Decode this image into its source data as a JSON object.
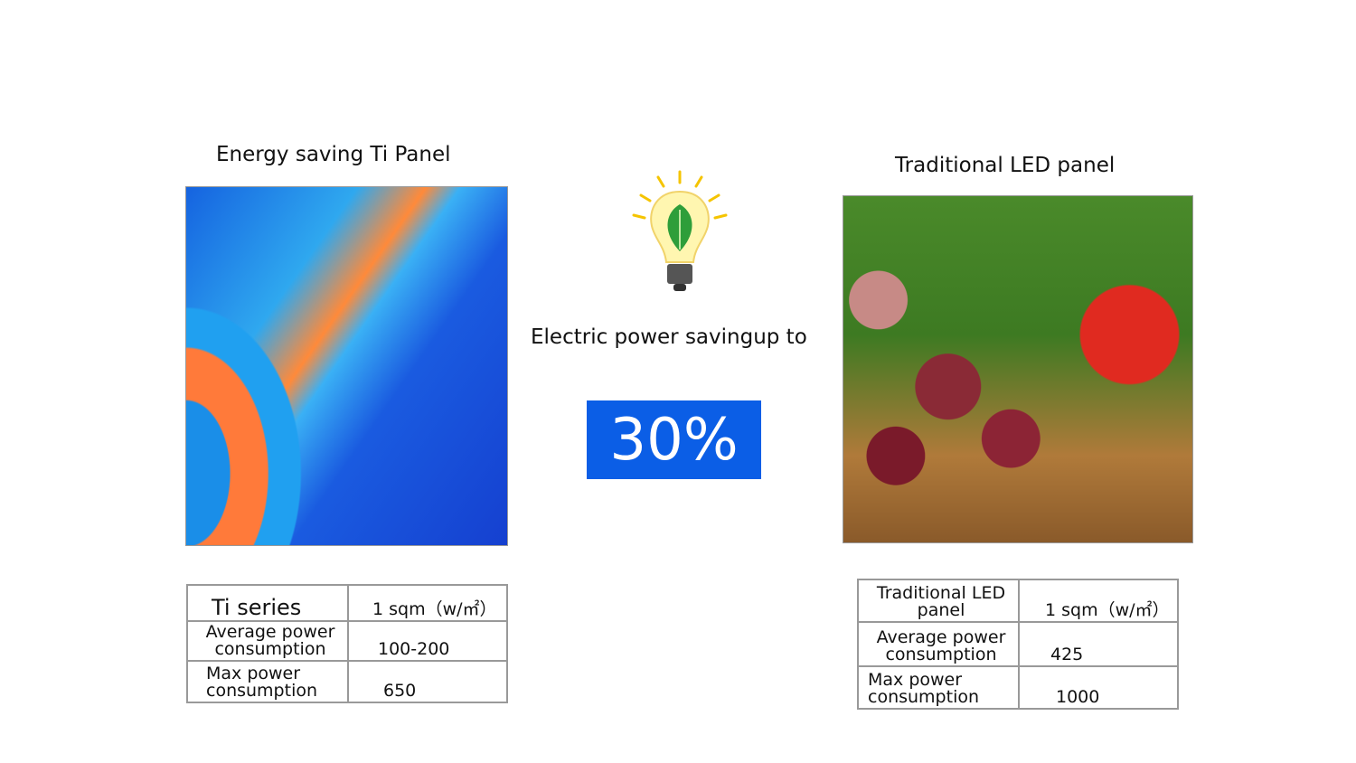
{
  "left": {
    "title": "Energy saving Ti Panel",
    "table": {
      "header": [
        "Ti series",
        "1 sqm（w/㎡）"
      ],
      "rows": [
        [
          "Average power consumption",
          "100-200"
        ],
        [
          "Max power consumption",
          "650"
        ]
      ]
    }
  },
  "center": {
    "icon": "lightbulb-leaf-icon",
    "caption": "Electric power savingup to",
    "value": "30%",
    "accent": "#0b5ee6"
  },
  "right": {
    "title": "Traditional LED panel",
    "table": {
      "header": [
        "Traditional LED panel",
        "1 sqm（w/㎡）"
      ],
      "rows": [
        [
          "Average power consumption",
          "425"
        ],
        [
          "Max power consumption",
          "1000"
        ]
      ]
    }
  }
}
